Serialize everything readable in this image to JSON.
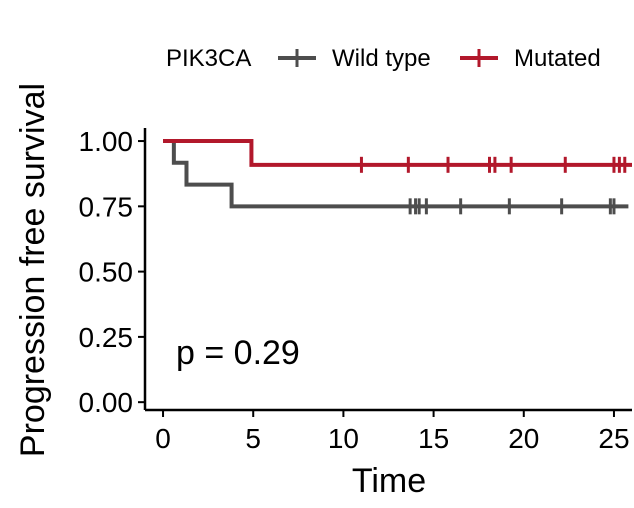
{
  "chart_data": {
    "type": "line",
    "subtype": "kaplan-meier step",
    "xlabel": "Time",
    "ylabel": "Progression free survival",
    "xlim": [
      -1,
      26
    ],
    "ylim": [
      -0.03,
      1.05
    ],
    "x_ticks": [
      "0",
      "5",
      "10",
      "15",
      "20",
      "25"
    ],
    "y_ticks": [
      "0.00",
      "0.25",
      "0.50",
      "0.75",
      "1.00"
    ],
    "grid": false,
    "legend": {
      "title": "PIK3CA",
      "position": "top"
    },
    "annotation": "p = 0.29",
    "series": [
      {
        "name": "Wild type",
        "color": "#4d4d4d",
        "steps": [
          [
            0,
            1.0
          ],
          [
            0.6,
            0.917
          ],
          [
            1.3,
            0.833
          ],
          [
            3.8,
            0.75
          ],
          [
            25.8,
            0.75
          ]
        ],
        "censored_x": [
          13.7,
          14.0,
          14.2,
          14.6,
          16.5,
          19.2,
          22.1,
          24.8,
          25.0
        ]
      },
      {
        "name": "Mutated",
        "color": "#b2182b",
        "steps": [
          [
            0,
            1.0
          ],
          [
            4.9,
            0.909
          ],
          [
            26.0,
            0.909
          ]
        ],
        "censored_x": [
          11.0,
          13.6,
          15.8,
          18.1,
          18.4,
          19.3,
          22.3,
          25.0,
          25.3,
          25.6
        ]
      }
    ]
  }
}
